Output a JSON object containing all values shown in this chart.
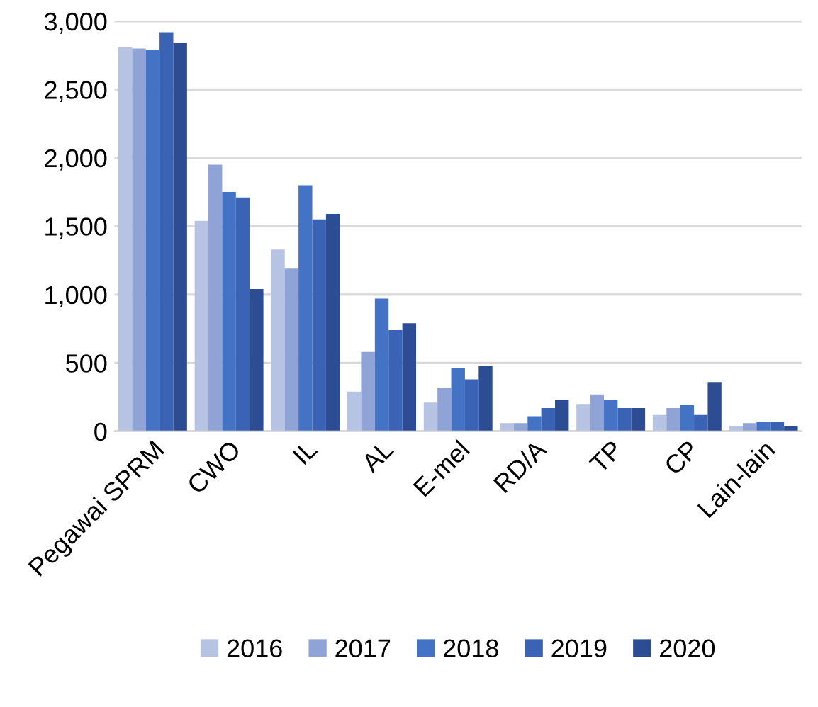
{
  "chart_data": {
    "type": "bar",
    "categories": [
      "Pegawai SPRM",
      "CWO",
      "IL",
      "AL",
      "E-mel",
      "RD/A",
      "TP",
      "CP",
      "Lain-lain"
    ],
    "series": [
      {
        "name": "2016",
        "color": "#b7c3e3",
        "values": [
          2810,
          1540,
          1330,
          290,
          210,
          60,
          200,
          120,
          40
        ]
      },
      {
        "name": "2017",
        "color": "#8fa3d6",
        "values": [
          2800,
          1950,
          1190,
          580,
          320,
          60,
          270,
          170,
          60
        ]
      },
      {
        "name": "2018",
        "color": "#4472c4",
        "values": [
          2790,
          1750,
          1800,
          970,
          460,
          110,
          230,
          190,
          70
        ]
      },
      {
        "name": "2019",
        "color": "#3a62b5",
        "values": [
          2920,
          1710,
          1550,
          740,
          380,
          170,
          170,
          120,
          70
        ]
      },
      {
        "name": "2020",
        "color": "#2c4d94",
        "values": [
          2840,
          1040,
          1590,
          790,
          480,
          230,
          170,
          360,
          40
        ]
      }
    ],
    "ylim": [
      0,
      3000
    ],
    "yticks": [
      {
        "value": 0,
        "label": "0"
      },
      {
        "value": 500,
        "label": "500"
      },
      {
        "value": 1000,
        "label": "1,000"
      },
      {
        "value": 1500,
        "label": "1,500"
      },
      {
        "value": 2000,
        "label": "2,000"
      },
      {
        "value": 2500,
        "label": "2,500"
      },
      {
        "value": 3000,
        "label": "3,000"
      }
    ],
    "grid": "y",
    "legend": "bottom"
  }
}
